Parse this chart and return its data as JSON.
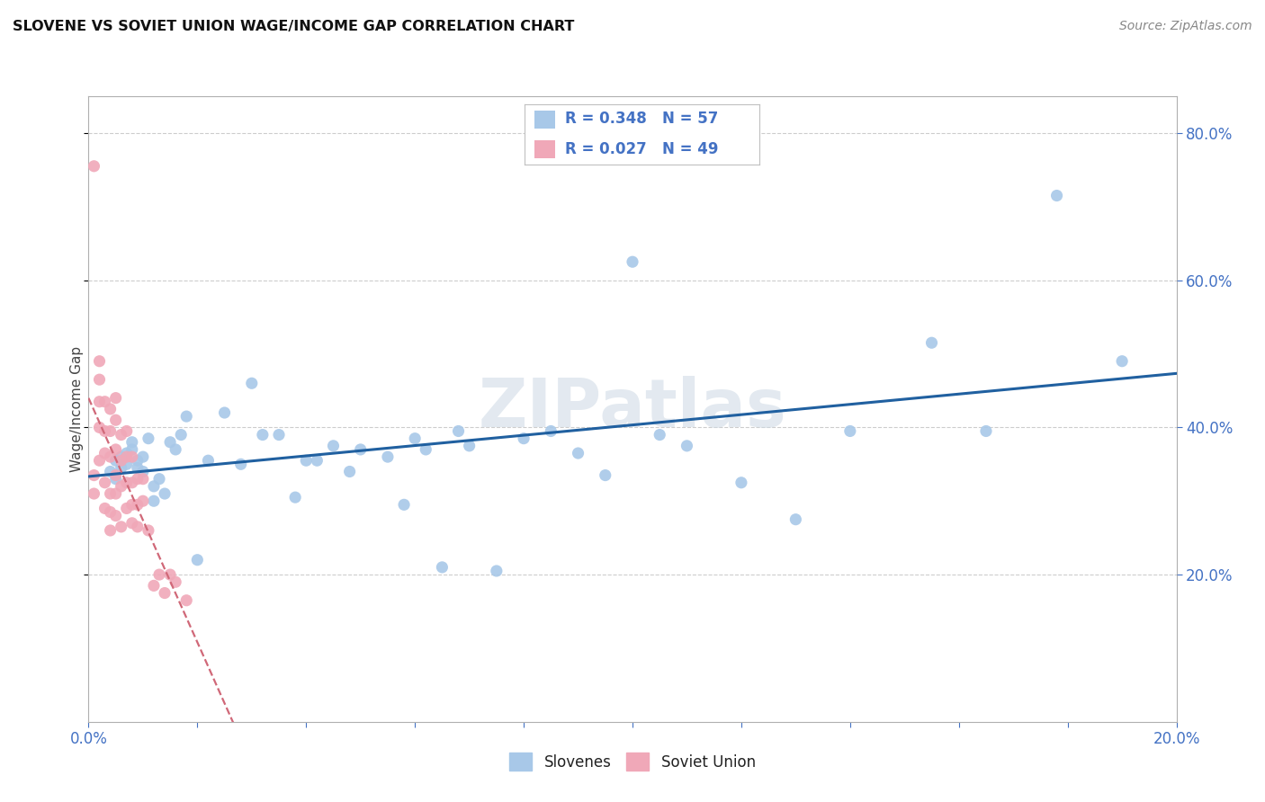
{
  "title": "SLOVENE VS SOVIET UNION WAGE/INCOME GAP CORRELATION CHART",
  "source": "Source: ZipAtlas.com",
  "ylabel": "Wage/Income Gap",
  "xlim": [
    0.0,
    0.2
  ],
  "ylim": [
    0.0,
    0.85
  ],
  "background_color": "#ffffff",
  "grid_color": "#c8c8c8",
  "blue_color": "#a8c8e8",
  "pink_color": "#f0a8b8",
  "trend_blue": "#2060a0",
  "trend_pink": "#d06878",
  "label_color": "#4472c4",
  "slovene_R": 0.348,
  "slovene_N": 57,
  "soviet_R": 0.027,
  "soviet_N": 49,
  "slovene_x": [
    0.004,
    0.005,
    0.005,
    0.006,
    0.006,
    0.007,
    0.007,
    0.008,
    0.008,
    0.009,
    0.009,
    0.01,
    0.01,
    0.011,
    0.012,
    0.012,
    0.013,
    0.014,
    0.015,
    0.016,
    0.017,
    0.018,
    0.02,
    0.022,
    0.025,
    0.028,
    0.03,
    0.032,
    0.035,
    0.038,
    0.04,
    0.042,
    0.045,
    0.048,
    0.05,
    0.055,
    0.058,
    0.06,
    0.062,
    0.065,
    0.068,
    0.07,
    0.075,
    0.08,
    0.085,
    0.09,
    0.095,
    0.1,
    0.105,
    0.11,
    0.12,
    0.13,
    0.14,
    0.155,
    0.165,
    0.178,
    0.19
  ],
  "slovene_y": [
    0.34,
    0.33,
    0.355,
    0.345,
    0.36,
    0.35,
    0.365,
    0.37,
    0.38,
    0.355,
    0.345,
    0.34,
    0.36,
    0.385,
    0.3,
    0.32,
    0.33,
    0.31,
    0.38,
    0.37,
    0.39,
    0.415,
    0.22,
    0.355,
    0.42,
    0.35,
    0.46,
    0.39,
    0.39,
    0.305,
    0.355,
    0.355,
    0.375,
    0.34,
    0.37,
    0.36,
    0.295,
    0.385,
    0.37,
    0.21,
    0.395,
    0.375,
    0.205,
    0.385,
    0.395,
    0.365,
    0.335,
    0.625,
    0.39,
    0.375,
    0.325,
    0.275,
    0.395,
    0.515,
    0.395,
    0.715,
    0.49
  ],
  "soviet_x": [
    0.001,
    0.001,
    0.001,
    0.002,
    0.002,
    0.002,
    0.002,
    0.002,
    0.003,
    0.003,
    0.003,
    0.003,
    0.003,
    0.004,
    0.004,
    0.004,
    0.004,
    0.004,
    0.004,
    0.005,
    0.005,
    0.005,
    0.005,
    0.005,
    0.005,
    0.006,
    0.006,
    0.006,
    0.006,
    0.007,
    0.007,
    0.007,
    0.007,
    0.008,
    0.008,
    0.008,
    0.008,
    0.009,
    0.009,
    0.009,
    0.01,
    0.01,
    0.011,
    0.012,
    0.013,
    0.014,
    0.015,
    0.016,
    0.018
  ],
  "soviet_y": [
    0.755,
    0.335,
    0.31,
    0.49,
    0.465,
    0.435,
    0.4,
    0.355,
    0.435,
    0.395,
    0.365,
    0.325,
    0.29,
    0.425,
    0.395,
    0.36,
    0.31,
    0.285,
    0.26,
    0.44,
    0.41,
    0.37,
    0.335,
    0.31,
    0.28,
    0.39,
    0.355,
    0.32,
    0.265,
    0.395,
    0.36,
    0.325,
    0.29,
    0.36,
    0.325,
    0.295,
    0.27,
    0.33,
    0.295,
    0.265,
    0.33,
    0.3,
    0.26,
    0.185,
    0.2,
    0.175,
    0.2,
    0.19,
    0.165
  ]
}
